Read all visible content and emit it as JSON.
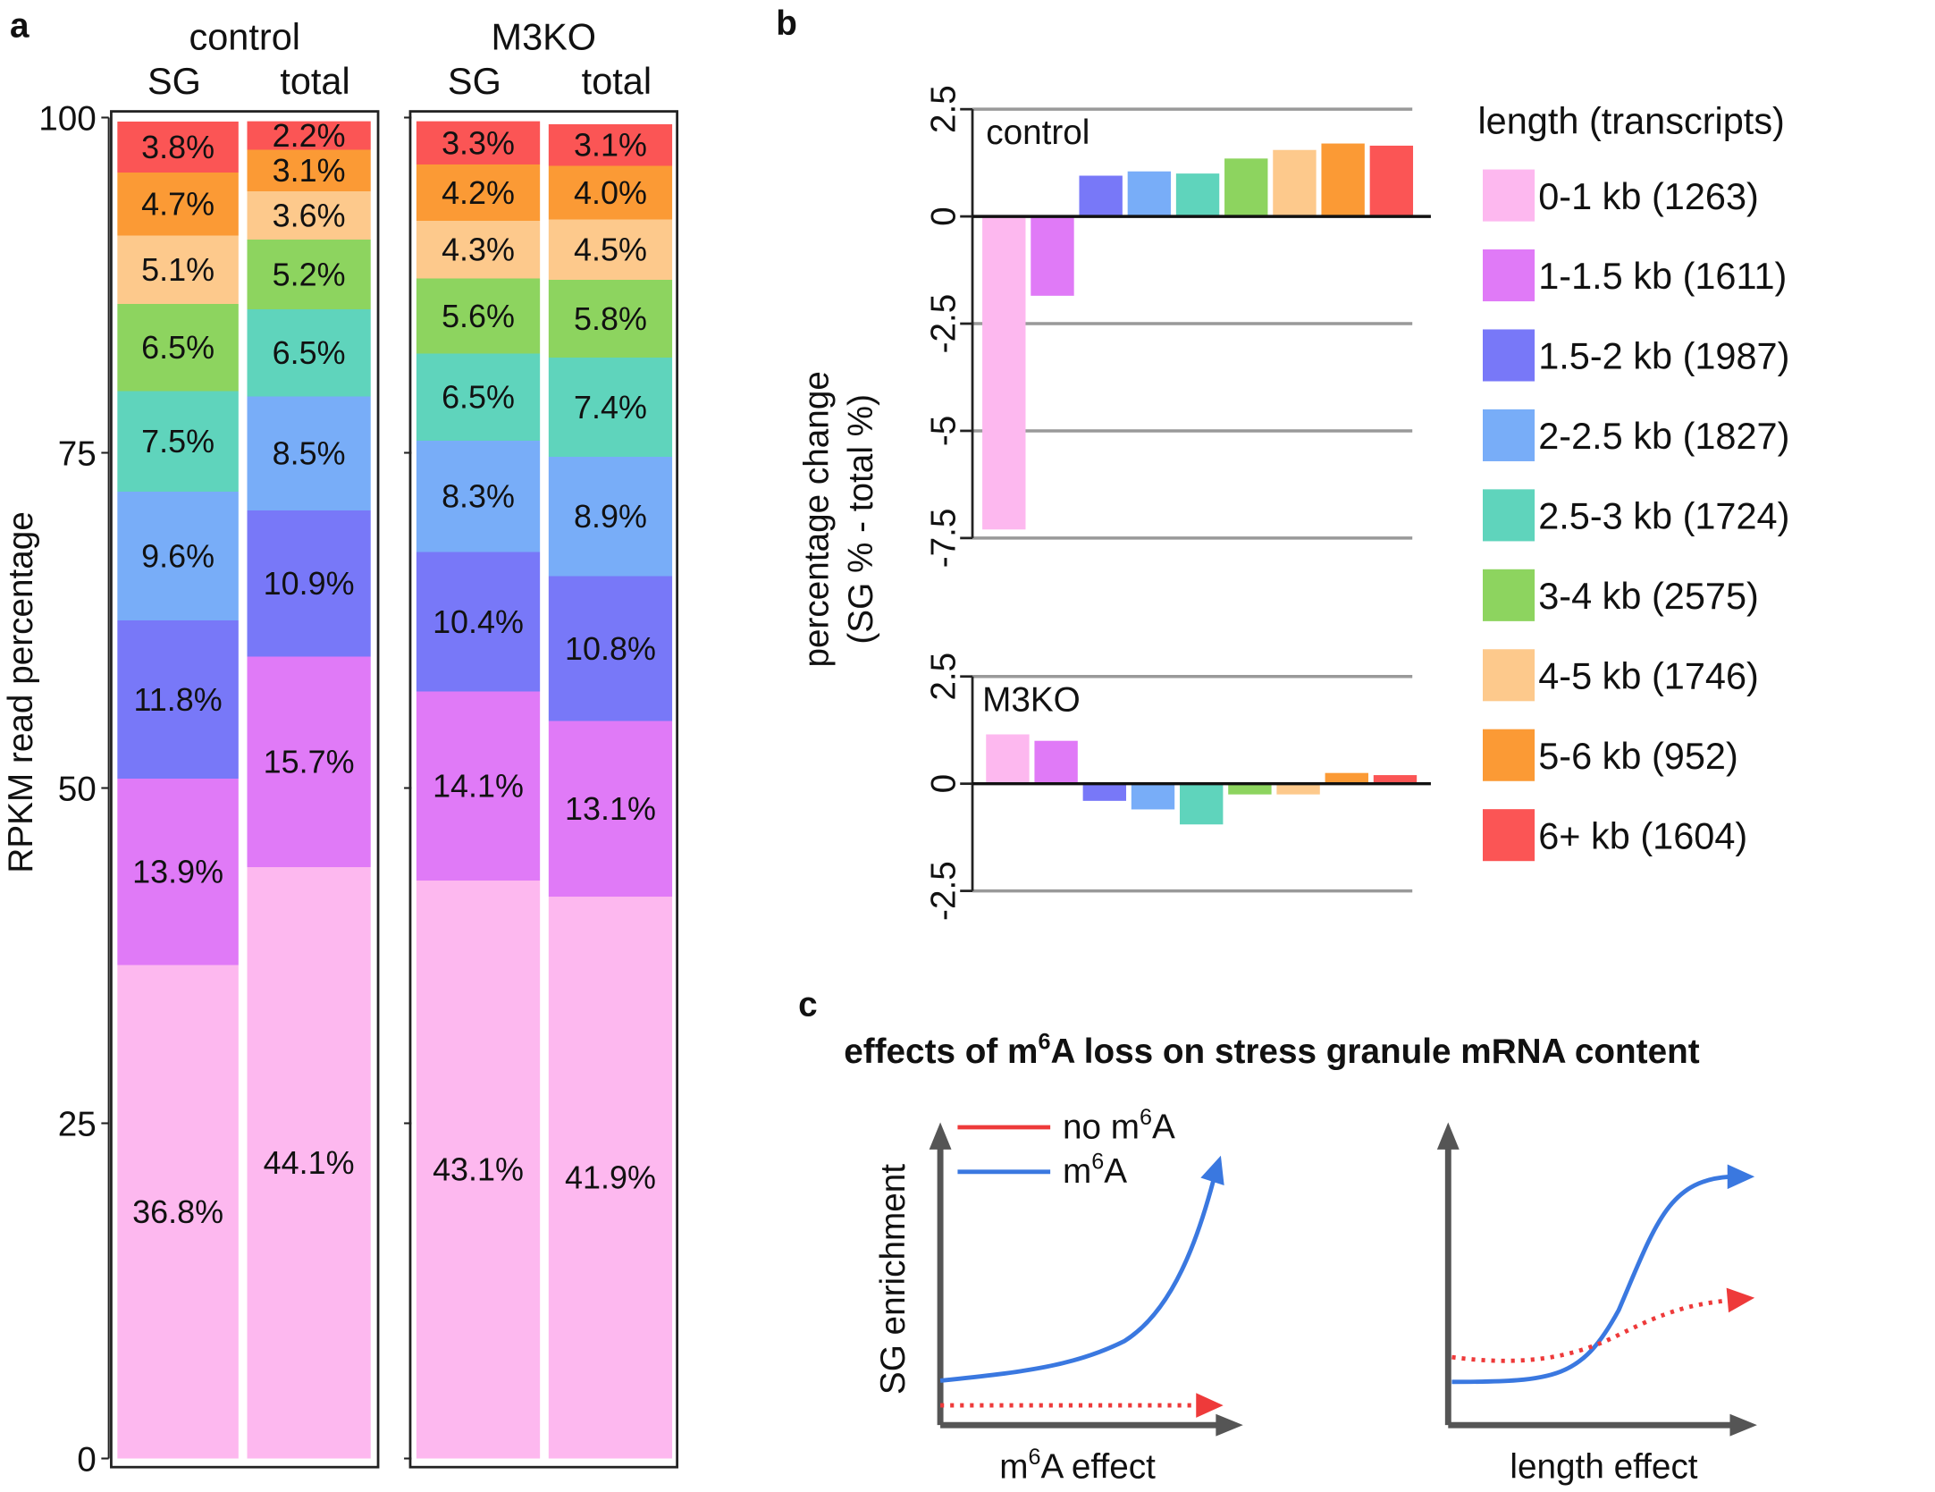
{
  "panel_labels": {
    "a": "a",
    "b": "b",
    "c": "c"
  },
  "colors": {
    "0-1 kb": "#fdb8ef",
    "1-1.5 kb": "#e07af7",
    "1.5-2 kb": "#7878f8",
    "2-2.5 kb": "#78adf8",
    "2.5-3 kb": "#5fd4bc",
    "3-4 kb": "#8dd45f",
    "4-5 kb": "#fdc98c",
    "5-6 kb": "#fb9a35",
    "6+ kb": "#fb5555",
    "m6A": "#3a78e0",
    "no_m6A": "#ee3a3a"
  },
  "chart_data": [
    {
      "type": "bar",
      "stacked": true,
      "ylabel": "RPKM read percentage",
      "ylim": [
        0,
        100
      ],
      "yticks": [
        "0",
        "25",
        "50",
        "75",
        "100"
      ],
      "groups": [
        "control",
        "M3KO"
      ],
      "columns": [
        "SG",
        "total"
      ],
      "categories": [
        "0-1 kb",
        "1-1.5 kb",
        "1.5-2 kb",
        "2-2.5 kb",
        "2.5-3 kb",
        "3-4 kb",
        "4-5 kb",
        "5-6 kb",
        "6+ kb"
      ],
      "series": [
        {
          "group": "control",
          "column": "SG",
          "values": [
            36.8,
            13.9,
            11.8,
            9.6,
            7.5,
            6.5,
            5.1,
            4.7,
            3.8
          ],
          "labels": [
            "36.8%",
            "13.9%",
            "11.8%",
            "9.6%",
            "7.5%",
            "6.5%",
            "5.1%",
            "4.7%",
            "3.8%"
          ]
        },
        {
          "group": "control",
          "column": "total",
          "values": [
            44.1,
            15.7,
            10.9,
            8.5,
            6.5,
            5.2,
            3.6,
            3.1,
            2.2
          ],
          "labels": [
            "44.1%",
            "15.7%",
            "10.9%",
            "8.5%",
            "6.5%",
            "5.2%",
            "3.6%",
            "3.1%",
            "2.2%"
          ]
        },
        {
          "group": "M3KO",
          "column": "SG",
          "values": [
            43.1,
            14.1,
            10.4,
            8.3,
            6.5,
            5.6,
            4.3,
            4.2,
            3.3
          ],
          "labels": [
            "43.1%",
            "14.1%",
            "10.4%",
            "8.3%",
            "6.5%",
            "5.6%",
            "4.3%",
            "4.2%",
            "3.3%"
          ]
        },
        {
          "group": "M3KO",
          "column": "total",
          "values": [
            41.9,
            13.1,
            10.8,
            8.9,
            7.4,
            5.8,
            4.5,
            4.0,
            3.1
          ],
          "labels": [
            "41.9%",
            "13.1%",
            "10.8%",
            "8.9%",
            "7.4%",
            "5.8%",
            "4.5%",
            "4.0%",
            "3.1%"
          ]
        }
      ]
    },
    {
      "type": "bar",
      "ylabel": [
        "percentage change",
        "(SG % - total %)"
      ],
      "categories": [
        "0-1 kb",
        "1-1.5 kb",
        "1.5-2 kb",
        "2-2.5 kb",
        "2.5-3 kb",
        "3-4 kb",
        "4-5 kb",
        "5-6 kb",
        "6+ kb"
      ],
      "panels": [
        {
          "name": "control",
          "ylim": [
            -7.5,
            2.5
          ],
          "yticks": [
            "2.5",
            "0",
            "-2.5",
            "-5",
            "-7.5"
          ],
          "grid": true,
          "values": [
            -7.3,
            -1.85,
            0.95,
            1.05,
            1.0,
            1.35,
            1.55,
            1.7,
            1.65
          ]
        },
        {
          "name": "M3KO",
          "ylim": [
            -2.5,
            2.5
          ],
          "yticks": [
            "2.5",
            "0",
            "-2.5"
          ],
          "grid": true,
          "values": [
            1.15,
            1.0,
            -0.4,
            -0.6,
            -0.95,
            -0.25,
            -0.25,
            0.25,
            0.2
          ]
        }
      ],
      "legend": {
        "title": "length (transcripts)",
        "position": "right",
        "entries": [
          "0-1 kb (1263)",
          "1-1.5 kb (1611)",
          "1.5-2 kb (1987)",
          "2-2.5 kb (1827)",
          "2.5-3 kb (1724)",
          "3-4 kb (2575)",
          "4-5 kb (1746)",
          "5-6 kb (952)",
          "6+ kb (1604)"
        ]
      }
    },
    {
      "type": "line",
      "title": "effects of m6A loss on stress granule mRNA content",
      "ylabel": "SG enrichment",
      "legend": [
        "no m6A",
        "m6A"
      ],
      "xlabels": [
        "m6A effect",
        "length effect"
      ]
    }
  ]
}
